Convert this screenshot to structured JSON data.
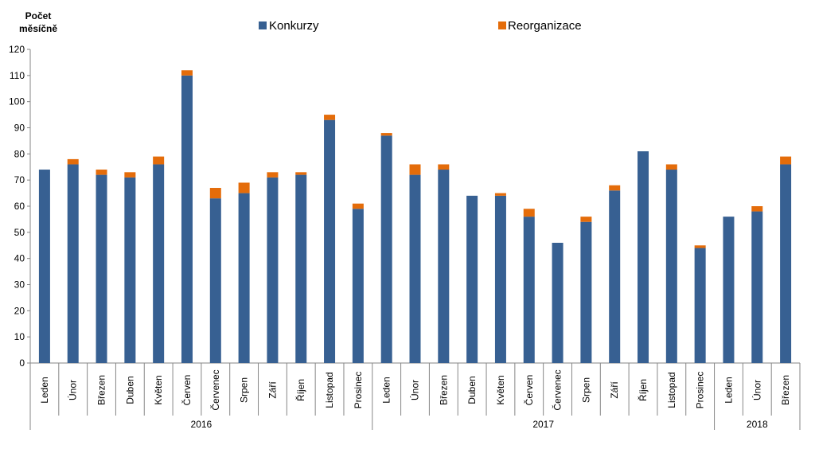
{
  "chart_data": {
    "type": "bar",
    "stacked": true,
    "ylabel_lines": [
      "Počet",
      "měsíčně"
    ],
    "ylim": [
      0,
      120
    ],
    "yticks": [
      0,
      10,
      20,
      30,
      40,
      50,
      60,
      70,
      80,
      90,
      100,
      110,
      120
    ],
    "grid": false,
    "legend_position": "top",
    "categories": [
      "Leden",
      "Únor",
      "Březen",
      "Duben",
      "Květen",
      "Červen",
      "Červenec",
      "Srpen",
      "Září",
      "Říjen",
      "Listopad",
      "Prosinec",
      "Leden",
      "Únor",
      "Březen",
      "Duben",
      "Květen",
      "Červen",
      "Červenec",
      "Srpen",
      "Září",
      "Říjen",
      "Listopad",
      "Prosinec",
      "Leden",
      "Únor",
      "Březen"
    ],
    "groups": [
      {
        "label": "2016",
        "count": 12
      },
      {
        "label": "2017",
        "count": 12
      },
      {
        "label": "2018",
        "count": 3
      }
    ],
    "series": [
      {
        "name": "Konkurzy",
        "color": "#376092",
        "values": [
          74,
          76,
          72,
          71,
          76,
          110,
          63,
          65,
          71,
          72,
          93,
          59,
          87,
          72,
          74,
          64,
          64,
          56,
          46,
          54,
          66,
          81,
          74,
          44,
          56,
          58,
          76
        ]
      },
      {
        "name": "Reorganizace",
        "color": "#E46C0A",
        "values": [
          0,
          2,
          2,
          2,
          3,
          2,
          4,
          4,
          2,
          1,
          2,
          2,
          1,
          4,
          2,
          0,
          1,
          3,
          0,
          2,
          2,
          0,
          2,
          1,
          0,
          2,
          3
        ]
      }
    ]
  }
}
